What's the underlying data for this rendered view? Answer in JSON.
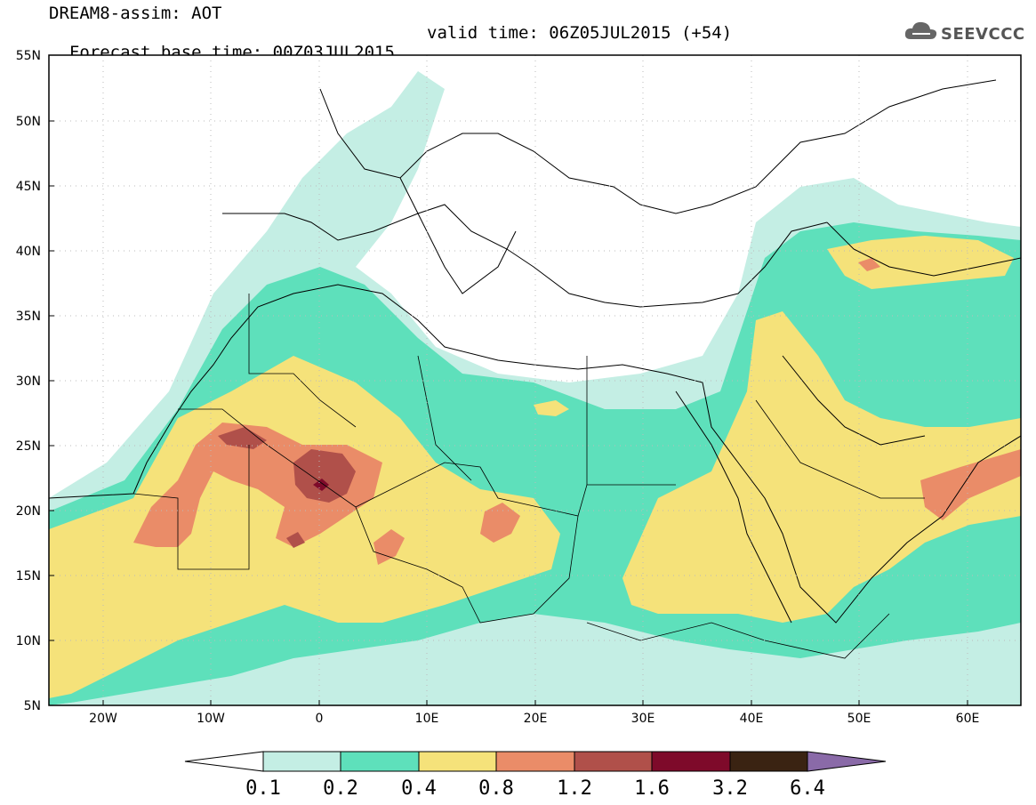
{
  "header": {
    "title_line1": "DREAM8-assim: AOT",
    "base_time": "Forecast base time: 00Z03JUL2015",
    "valid_time": "valid time: 06Z05JUL2015 (+54)",
    "logo_text": "SEEVCCC"
  },
  "axes": {
    "lat_labels": [
      "55N",
      "50N",
      "45N",
      "40N",
      "35N",
      "30N",
      "25N",
      "20N",
      "15N",
      "10N",
      "5N"
    ],
    "lon_labels": [
      "20W",
      "10W",
      "0",
      "10E",
      "20E",
      "30E",
      "40E",
      "50E",
      "60E"
    ]
  },
  "colorbar": {
    "levels": [
      "0.1",
      "0.2",
      "0.4",
      "0.8",
      "1.2",
      "1.6",
      "3.2",
      "6.4"
    ],
    "colors": [
      "#ffffff",
      "#c4eee4",
      "#5ee0bb",
      "#f5e27a",
      "#ea8c68",
      "#b0504a",
      "#7e0a2a",
      "#3a2312",
      "#8a6aa8"
    ]
  },
  "palette": {
    "c01": "#c4eee4",
    "c02": "#5ee0bb",
    "c04": "#f5e27a",
    "c08": "#ea8c68",
    "c12": "#b0504a",
    "c16": "#7e0a2a"
  }
}
